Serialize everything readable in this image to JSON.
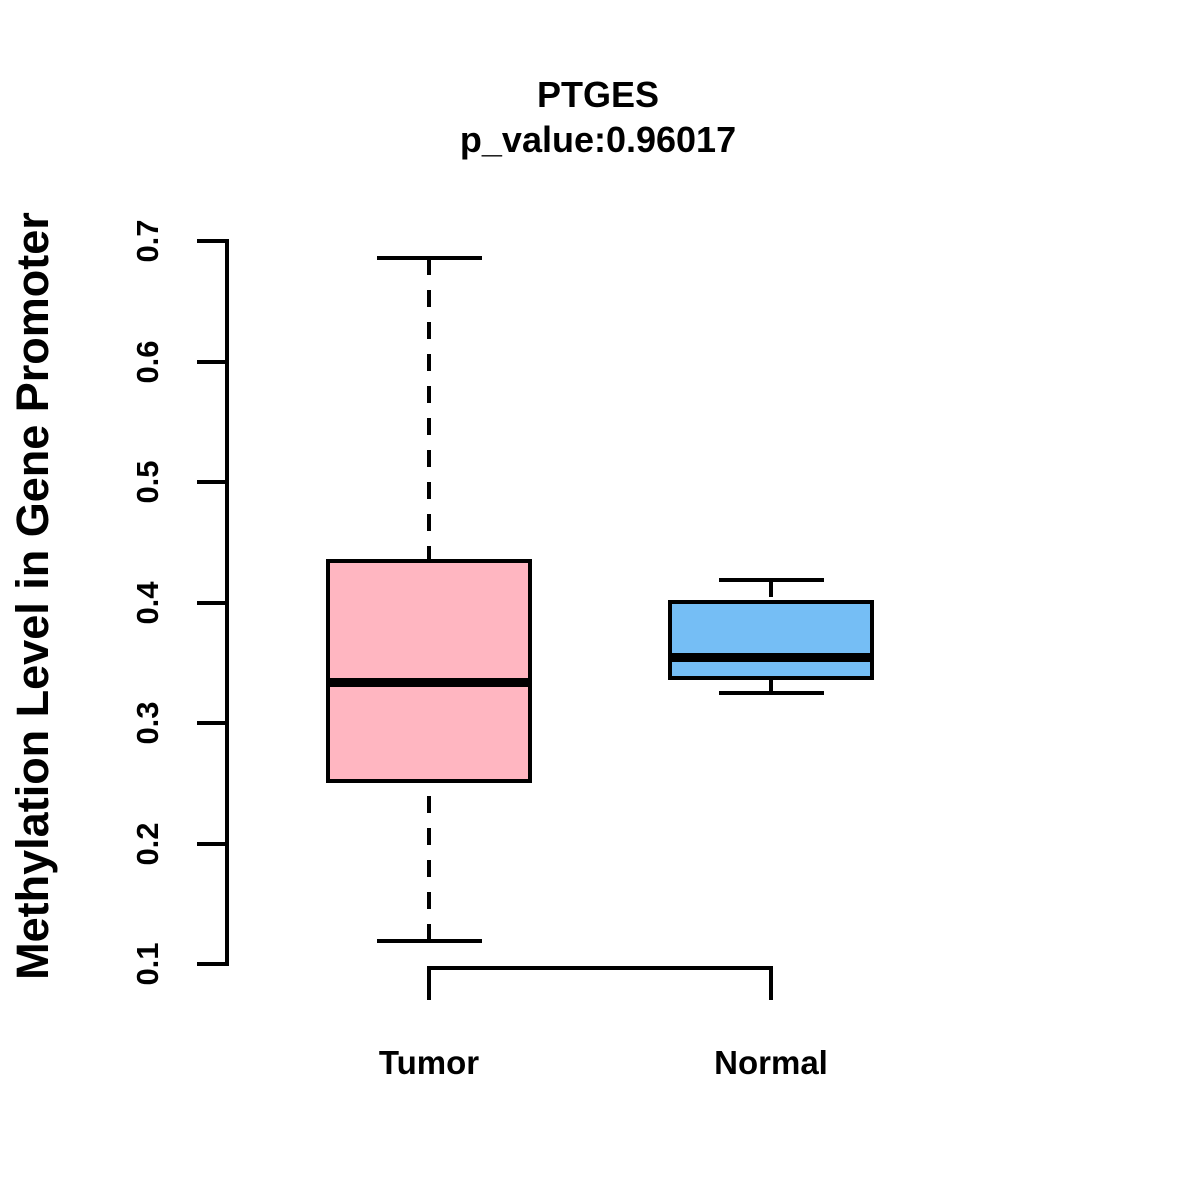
{
  "title": {
    "line1": "PTGES",
    "line2": "p_value:0.96017"
  },
  "chart_data": {
    "type": "boxplot",
    "title": "PTGES",
    "subtitle": "p_value:0.96017",
    "xlabel": "",
    "ylabel": "Methylation Level in Gene Promoter",
    "ylim": [
      0.1,
      0.7
    ],
    "yticks": [
      0.1,
      0.2,
      0.3,
      0.4,
      0.5,
      0.6,
      0.7
    ],
    "categories": [
      "Tumor",
      "Normal"
    ],
    "grid": false,
    "legend": "none",
    "colors": {
      "tumor_fill": "#FFB6C1",
      "normal_fill": "#75BEF5",
      "stroke": "#000000",
      "background": "#FFFFFF"
    },
    "series": [
      {
        "name": "Tumor",
        "fill": "#FFB6C1",
        "whisker_low": 0.119,
        "q1": 0.25,
        "median": 0.334,
        "q3": 0.436,
        "whisker_high": 0.686,
        "whisker_style": "dashed"
      },
      {
        "name": "Normal",
        "fill": "#75BEF5",
        "whisker_low": 0.325,
        "q1": 0.336,
        "median": 0.354,
        "q3": 0.402,
        "whisker_high": 0.419,
        "whisker_style": "dashed"
      }
    ]
  }
}
